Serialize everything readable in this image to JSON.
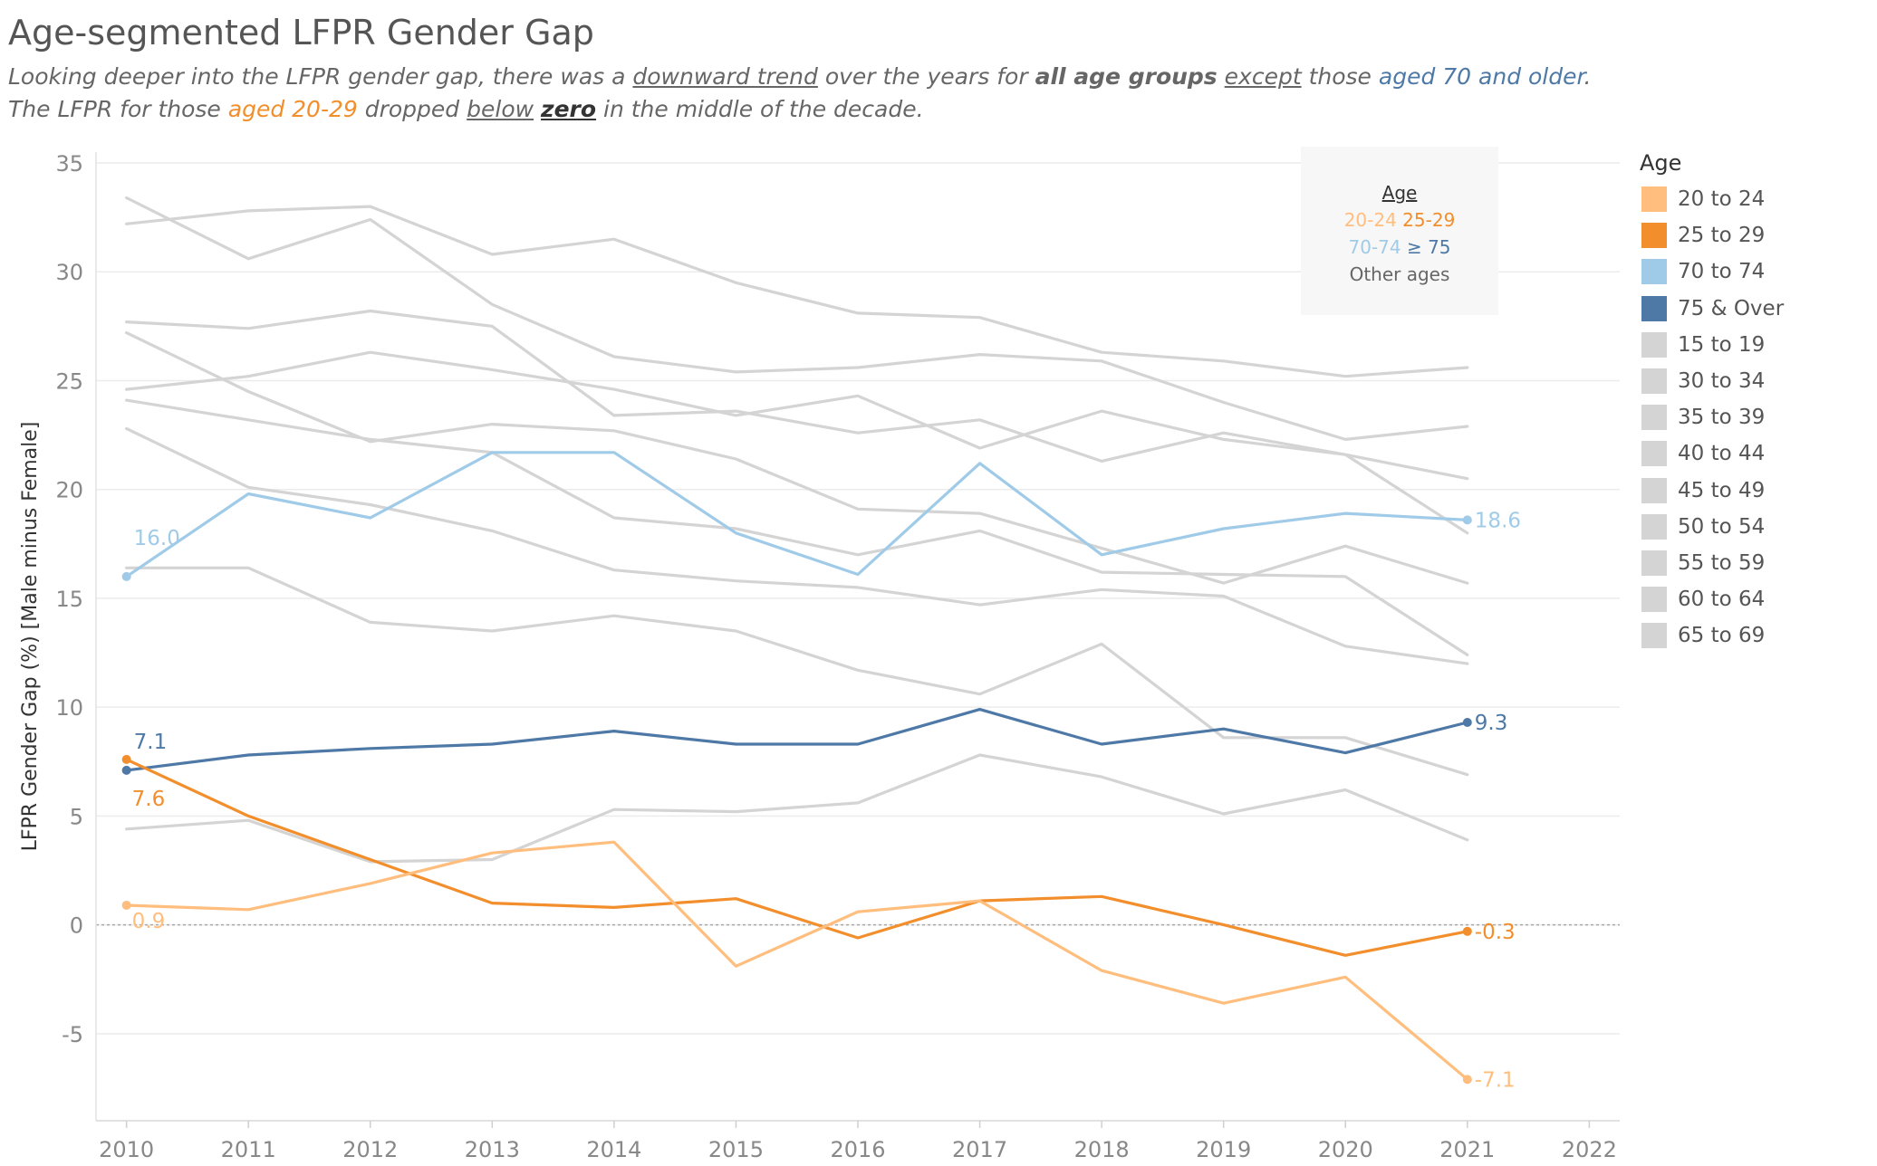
{
  "title": "Age-segmented LFPR Gender Gap",
  "subtitle": {
    "line1": {
      "t1": "Looking deeper into the LFPR gender gap, there was a ",
      "t2": "downward trend",
      "t3": " over the years for ",
      "t4": "all age groups",
      "t5": " ",
      "t6": "except",
      "t7": " those ",
      "t8": "aged 70 and older",
      "t9": "."
    },
    "line2": {
      "t1": "The LFPR for those ",
      "t2": "aged 20-29",
      "t3": " dropped ",
      "t4": "below",
      "t5": " ",
      "t6": "zero",
      "t7": " in the middle of the decade."
    }
  },
  "note": {
    "title": "Age",
    "a": "20-24",
    "b": "25-29",
    "c": "70-74",
    "ge": "≥",
    "d": "75",
    "other": "Other ages"
  },
  "legend": {
    "title": "Age",
    "items": [
      {
        "label": "20 to 24",
        "color": "#ffbe7d"
      },
      {
        "label": "25 to 29",
        "color": "#f28e2b"
      },
      {
        "label": "70 to 74",
        "color": "#a0cbe8"
      },
      {
        "label": "75 & Over",
        "color": "#4e79a7"
      },
      {
        "label": "15 to 19",
        "color": "#d4d4d4"
      },
      {
        "label": "30 to 34",
        "color": "#d4d4d4"
      },
      {
        "label": "35 to 39",
        "color": "#d4d4d4"
      },
      {
        "label": "40 to 44",
        "color": "#d4d4d4"
      },
      {
        "label": "45 to 49",
        "color": "#d4d4d4"
      },
      {
        "label": "50 to 54",
        "color": "#d4d4d4"
      },
      {
        "label": "55 to 59",
        "color": "#d4d4d4"
      },
      {
        "label": "60 to 64",
        "color": "#d4d4d4"
      },
      {
        "label": "65 to 69",
        "color": "#d4d4d4"
      }
    ]
  },
  "chart_data": {
    "type": "line",
    "title": "Age-segmented LFPR Gender Gap",
    "xlabel": "",
    "ylabel": "LFPR Gender Gap (%) [Male minus Female]",
    "xlim": [
      2009.75,
      2022.25
    ],
    "ylim": [
      -9,
      35.5
    ],
    "x_ticks": [
      2010,
      2011,
      2012,
      2013,
      2014,
      2015,
      2016,
      2017,
      2018,
      2019,
      2020,
      2021,
      2022
    ],
    "y_ticks": [
      35,
      30,
      25,
      20,
      15,
      10,
      5,
      0,
      -5
    ],
    "zero_reference_line": true,
    "grid": true,
    "legend_position": "right",
    "years": [
      2010,
      2011,
      2012,
      2013,
      2014,
      2015,
      2016,
      2017,
      2018,
      2019,
      2020,
      2021
    ],
    "series": [
      {
        "name": "15 to 19",
        "color": "#d4d4d4",
        "values": [
          4.4,
          4.8,
          2.9,
          3.0,
          5.3,
          5.2,
          5.6,
          7.8,
          6.8,
          5.1,
          6.2,
          3.9
        ]
      },
      {
        "name": "30 to 34",
        "color": "#d4d4d4",
        "values": [
          16.4,
          16.4,
          13.9,
          13.5,
          14.2,
          13.5,
          11.7,
          10.6,
          12.9,
          8.6,
          8.6,
          6.9
        ]
      },
      {
        "name": "35 to 39",
        "color": "#d4d4d4",
        "values": [
          22.8,
          20.1,
          19.3,
          18.1,
          16.3,
          15.8,
          15.5,
          14.7,
          15.4,
          15.1,
          12.8,
          12.0
        ]
      },
      {
        "name": "40 to 44",
        "color": "#d4d4d4",
        "values": [
          24.1,
          23.2,
          22.3,
          21.7,
          18.7,
          18.2,
          17.0,
          18.1,
          16.2,
          16.1,
          16.0,
          12.4
        ]
      },
      {
        "name": "45 to 49",
        "color": "#d4d4d4",
        "values": [
          27.2,
          24.5,
          22.2,
          23.0,
          22.7,
          21.4,
          19.1,
          18.9,
          17.3,
          15.7,
          17.4,
          15.7
        ]
      },
      {
        "name": "50 to 54",
        "color": "#d4d4d4",
        "values": [
          27.7,
          27.4,
          28.2,
          27.5,
          23.4,
          23.6,
          22.6,
          23.2,
          21.3,
          22.6,
          21.6,
          18.0
        ]
      },
      {
        "name": "55 to 59",
        "color": "#d4d4d4",
        "values": [
          24.6,
          25.2,
          26.3,
          25.5,
          24.6,
          23.4,
          24.3,
          21.9,
          23.6,
          22.3,
          21.6,
          20.5
        ]
      },
      {
        "name": "60 to 64",
        "color": "#d4d4d4",
        "values": [
          33.4,
          30.6,
          32.4,
          28.5,
          26.1,
          25.4,
          25.6,
          26.2,
          25.9,
          24.0,
          22.3,
          22.9
        ]
      },
      {
        "name": "65 to 69",
        "color": "#d4d4d4",
        "values": [
          32.2,
          32.8,
          33.0,
          30.8,
          31.5,
          29.5,
          28.1,
          27.9,
          26.3,
          25.9,
          25.2,
          25.6
        ]
      },
      {
        "name": "70 to 74",
        "color": "#a0cbe8",
        "values": [
          16.0,
          19.8,
          18.7,
          21.7,
          21.7,
          18.0,
          16.1,
          21.2,
          17.0,
          18.2,
          18.9,
          18.6
        ]
      },
      {
        "name": "75 & Over",
        "color": "#4e79a7",
        "values": [
          7.1,
          7.8,
          8.1,
          8.3,
          8.9,
          8.3,
          8.3,
          9.9,
          8.3,
          9.0,
          7.9,
          9.3
        ]
      },
      {
        "name": "25 to 29",
        "color": "#f28e2b",
        "values": [
          7.6,
          5.0,
          3.0,
          1.0,
          0.8,
          1.2,
          -0.6,
          1.1,
          1.3,
          0.0,
          -1.4,
          -0.3
        ]
      },
      {
        "name": "20 to 24",
        "color": "#ffbe7d",
        "values": [
          0.9,
          0.7,
          1.9,
          3.3,
          3.8,
          -1.9,
          0.6,
          1.1,
          -2.1,
          -3.6,
          -2.4,
          -7.1
        ]
      }
    ],
    "data_labels": [
      {
        "series": "70 to 74",
        "first": "16.0",
        "last": "18.6"
      },
      {
        "series": "75 & Over",
        "first": "7.1",
        "last": "9.3"
      },
      {
        "series": "25 to 29",
        "first": "7.6",
        "last": "-0.3"
      },
      {
        "series": "20 to 24",
        "first": "0.9",
        "last": "-7.1"
      }
    ]
  }
}
